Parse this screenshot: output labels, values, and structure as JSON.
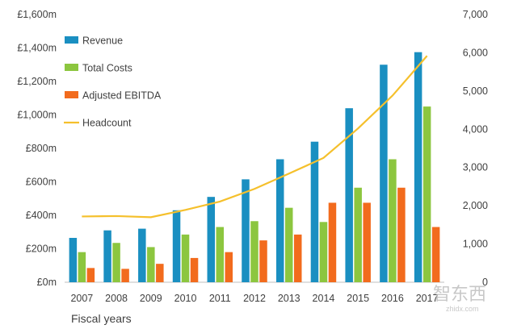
{
  "chart_data": {
    "type": "bar",
    "xlabel": "Fiscal years",
    "categories": [
      "2007",
      "2008",
      "2009",
      "2010",
      "2011",
      "2012",
      "2013",
      "2014",
      "2015",
      "2016",
      "2017"
    ],
    "y_left": {
      "ylim": [
        0,
        1600
      ],
      "ticks": [
        0,
        200,
        400,
        600,
        800,
        1000,
        1200,
        1400,
        1600
      ],
      "tick_labels": [
        "£0m",
        "£200m",
        "£400m",
        "£600m",
        "£800m",
        "£1,000m",
        "£1,200m",
        "£1,400m",
        "£1,600m"
      ]
    },
    "y_right": {
      "ylim": [
        0,
        7000
      ],
      "ticks": [
        0,
        1000,
        2000,
        3000,
        4000,
        5000,
        6000,
        7000
      ],
      "tick_labels": [
        "0",
        "1,000",
        "2,000",
        "3,000",
        "4,000",
        "5,000",
        "6,000",
        "7,000"
      ]
    },
    "series": [
      {
        "name": "Revenue",
        "kind": "bar",
        "axis": "left",
        "color": "#1a8fc1",
        "values": [
          265,
          310,
          320,
          430,
          510,
          615,
          735,
          840,
          1040,
          1300,
          1375
        ]
      },
      {
        "name": "Total Costs",
        "kind": "bar",
        "axis": "left",
        "color": "#8cc63f",
        "values": [
          180,
          235,
          210,
          285,
          330,
          365,
          445,
          360,
          565,
          735,
          1050
        ]
      },
      {
        "name": "Adjusted EBITDA",
        "kind": "bar",
        "axis": "left",
        "color": "#f26b1d",
        "values": [
          85,
          80,
          110,
          145,
          180,
          250,
          285,
          475,
          475,
          565,
          330
        ]
      },
      {
        "name": "Headcount",
        "kind": "line",
        "axis": "right",
        "color": "#f5c02c",
        "values": [
          1720,
          1730,
          1700,
          1890,
          2110,
          2440,
          2840,
          3250,
          4020,
          4880,
          5920
        ]
      }
    ],
    "legend_position": "top-left",
    "grid": false
  },
  "watermark": {
    "main": "智东西",
    "sub": "zhidx.com"
  }
}
